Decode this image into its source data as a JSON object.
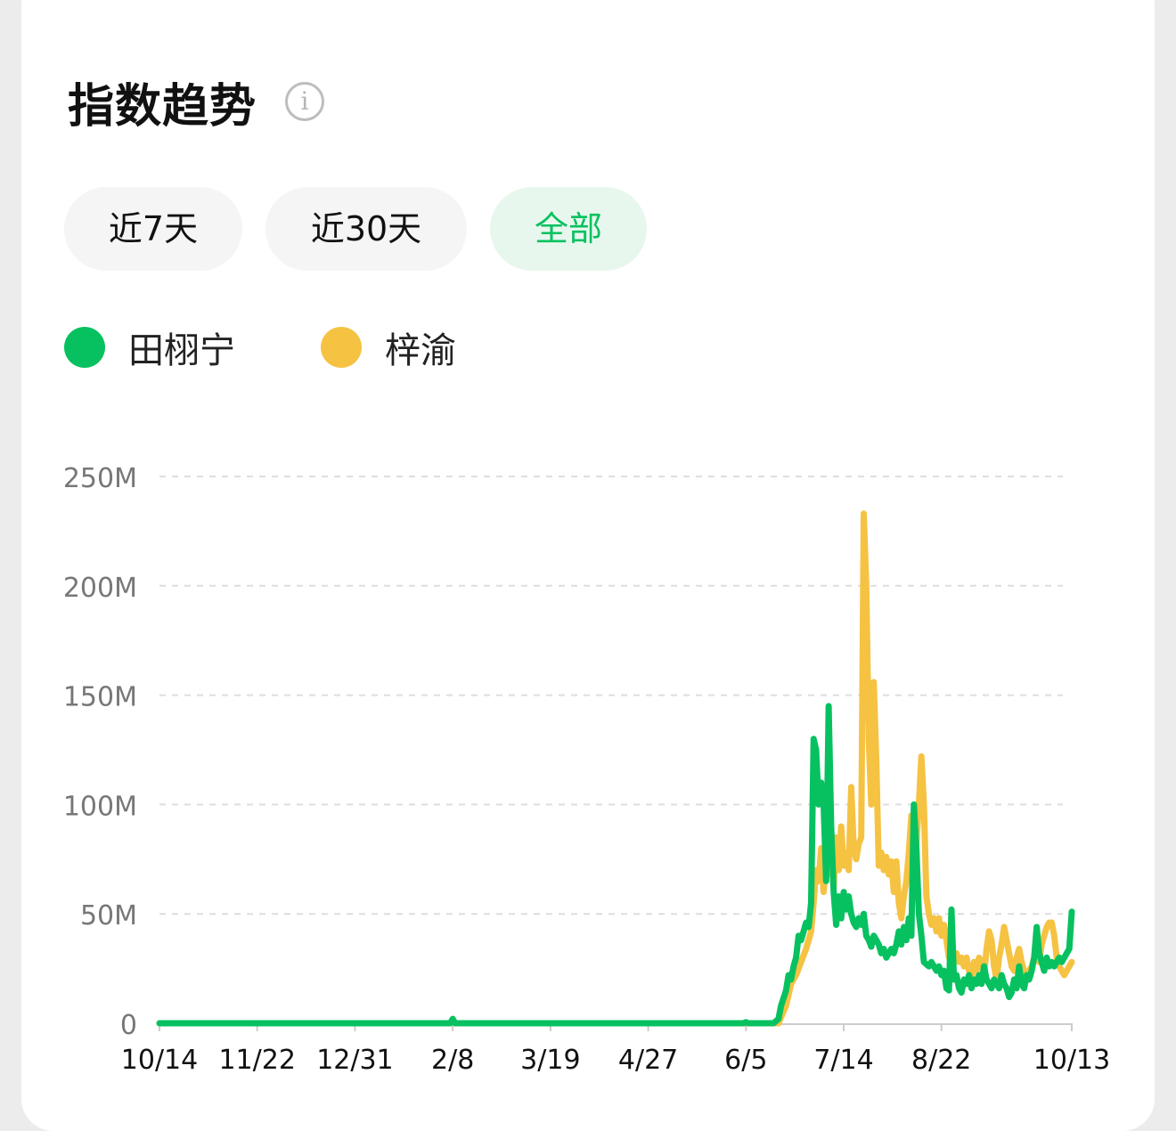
{
  "header": {
    "title": "指数趋势",
    "info_glyph": "i",
    "info_icon": "info-circle-icon"
  },
  "tabs": [
    {
      "label": "近7天",
      "active": false
    },
    {
      "label": "近30天",
      "active": false
    },
    {
      "label": "全部",
      "active": true
    }
  ],
  "colors": {
    "accent": "#07c160",
    "series1": "#07c160",
    "series2": "#f5c242",
    "active_tab_bg": "#e8f7ee",
    "tab_bg": "#f5f5f5"
  },
  "legend": [
    {
      "name": "田栩宁",
      "color": "#07c160"
    },
    {
      "name": "梓渝",
      "color": "#f5c242"
    }
  ],
  "chart_data": {
    "type": "line",
    "y_tick_labels": [
      "0",
      "50M",
      "100M",
      "150M",
      "200M",
      "250M"
    ],
    "y_ticks": [
      0,
      50,
      100,
      150,
      200,
      250
    ],
    "ylim": [
      0,
      250
    ],
    "y_unit": "M",
    "x_tick_labels": [
      "10/14",
      "11/22",
      "12/31",
      "2/8",
      "3/19",
      "4/27",
      "6/5",
      "7/14",
      "8/22",
      "10/13"
    ],
    "x_ticks": [
      "2024-10-14",
      "2024-11-22",
      "2024-12-31",
      "2025-02-08",
      "2025-03-19",
      "2025-04-27",
      "2025-06-05",
      "2025-07-14",
      "2025-08-22",
      "2025-10-13"
    ],
    "xlim": [
      "2024-10-14",
      "2025-10-13"
    ],
    "grid": true,
    "series": [
      {
        "name": "梓渝",
        "color": "#f5c242",
        "points": [
          [
            "2024-10-14",
            0
          ],
          [
            "2025-02-07",
            0
          ],
          [
            "2025-02-08",
            1
          ],
          [
            "2025-02-09",
            0
          ],
          [
            "2025-06-05",
            0
          ],
          [
            "2025-06-18",
            0
          ],
          [
            "2025-06-21",
            8
          ],
          [
            "2025-06-23",
            18
          ],
          [
            "2025-06-25",
            22
          ],
          [
            "2025-06-27",
            28
          ],
          [
            "2025-06-29",
            34
          ],
          [
            "2025-07-01",
            42
          ],
          [
            "2025-07-02",
            55
          ],
          [
            "2025-07-03",
            70
          ],
          [
            "2025-07-04",
            65
          ],
          [
            "2025-07-05",
            80
          ],
          [
            "2025-07-06",
            60
          ],
          [
            "2025-07-07",
            75
          ],
          [
            "2025-07-08",
            68
          ],
          [
            "2025-07-09",
            78
          ],
          [
            "2025-07-10",
            62
          ],
          [
            "2025-07-11",
            85
          ],
          [
            "2025-07-12",
            70
          ],
          [
            "2025-07-13",
            90
          ],
          [
            "2025-07-14",
            72
          ],
          [
            "2025-07-15",
            78
          ],
          [
            "2025-07-16",
            70
          ],
          [
            "2025-07-17",
            108
          ],
          [
            "2025-07-18",
            80
          ],
          [
            "2025-07-19",
            75
          ],
          [
            "2025-07-20",
            82
          ],
          [
            "2025-07-21",
            85
          ],
          [
            "2025-07-22",
            233
          ],
          [
            "2025-07-23",
            200
          ],
          [
            "2025-07-24",
            130
          ],
          [
            "2025-07-25",
            100
          ],
          [
            "2025-07-26",
            156
          ],
          [
            "2025-07-27",
            120
          ],
          [
            "2025-07-28",
            72
          ],
          [
            "2025-07-29",
            78
          ],
          [
            "2025-07-30",
            70
          ],
          [
            "2025-07-31",
            76
          ],
          [
            "2025-08-01",
            68
          ],
          [
            "2025-08-02",
            74
          ],
          [
            "2025-08-03",
            60
          ],
          [
            "2025-08-04",
            74
          ],
          [
            "2025-08-05",
            55
          ],
          [
            "2025-08-06",
            48
          ],
          [
            "2025-08-07",
            58
          ],
          [
            "2025-08-08",
            65
          ],
          [
            "2025-08-09",
            78
          ],
          [
            "2025-08-10",
            95
          ],
          [
            "2025-08-11",
            62
          ],
          [
            "2025-08-12",
            82
          ],
          [
            "2025-08-13",
            100
          ],
          [
            "2025-08-14",
            122
          ],
          [
            "2025-08-15",
            100
          ],
          [
            "2025-08-16",
            58
          ],
          [
            "2025-08-17",
            50
          ],
          [
            "2025-08-18",
            45
          ],
          [
            "2025-08-19",
            48
          ],
          [
            "2025-08-20",
            42
          ],
          [
            "2025-08-21",
            48
          ],
          [
            "2025-08-22",
            40
          ],
          [
            "2025-08-23",
            45
          ],
          [
            "2025-08-24",
            38
          ],
          [
            "2025-08-25",
            30
          ],
          [
            "2025-08-26",
            36
          ],
          [
            "2025-08-27",
            30
          ],
          [
            "2025-08-28",
            32
          ],
          [
            "2025-08-29",
            28
          ],
          [
            "2025-08-30",
            30
          ],
          [
            "2025-08-31",
            26
          ],
          [
            "2025-09-01",
            30
          ],
          [
            "2025-09-02",
            24
          ],
          [
            "2025-09-03",
            20
          ],
          [
            "2025-09-04",
            28
          ],
          [
            "2025-09-05",
            24
          ],
          [
            "2025-09-06",
            30
          ],
          [
            "2025-09-07",
            28
          ],
          [
            "2025-09-08",
            22
          ],
          [
            "2025-09-09",
            34
          ],
          [
            "2025-09-10",
            42
          ],
          [
            "2025-09-11",
            38
          ],
          [
            "2025-09-12",
            26
          ],
          [
            "2025-09-13",
            20
          ],
          [
            "2025-09-14",
            30
          ],
          [
            "2025-09-15",
            36
          ],
          [
            "2025-09-16",
            44
          ],
          [
            "2025-09-17",
            38
          ],
          [
            "2025-09-18",
            32
          ],
          [
            "2025-09-19",
            26
          ],
          [
            "2025-09-20",
            24
          ],
          [
            "2025-09-21",
            30
          ],
          [
            "2025-09-22",
            34
          ],
          [
            "2025-09-23",
            28
          ],
          [
            "2025-09-24",
            24
          ],
          [
            "2025-09-25",
            20
          ],
          [
            "2025-09-26",
            24
          ],
          [
            "2025-09-27",
            26
          ],
          [
            "2025-09-28",
            30
          ],
          [
            "2025-09-29",
            32
          ],
          [
            "2025-09-30",
            28
          ],
          [
            "2025-10-01",
            36
          ],
          [
            "2025-10-02",
            40
          ],
          [
            "2025-10-03",
            44
          ],
          [
            "2025-10-04",
            46
          ],
          [
            "2025-10-05",
            46
          ],
          [
            "2025-10-06",
            40
          ],
          [
            "2025-10-07",
            30
          ],
          [
            "2025-10-08",
            26
          ],
          [
            "2025-10-09",
            24
          ],
          [
            "2025-10-10",
            22
          ],
          [
            "2025-10-11",
            24
          ],
          [
            "2025-10-12",
            26
          ],
          [
            "2025-10-13",
            28
          ]
        ]
      },
      {
        "name": "田栩宁",
        "color": "#07c160",
        "points": [
          [
            "2024-10-14",
            0
          ],
          [
            "2025-02-07",
            0
          ],
          [
            "2025-02-08",
            2
          ],
          [
            "2025-02-09",
            0
          ],
          [
            "2025-06-04",
            0
          ],
          [
            "2025-06-05",
            0.5
          ],
          [
            "2025-06-06",
            0
          ],
          [
            "2025-06-16",
            0
          ],
          [
            "2025-06-18",
            2
          ],
          [
            "2025-06-19",
            8
          ],
          [
            "2025-06-21",
            15
          ],
          [
            "2025-06-22",
            22
          ],
          [
            "2025-06-23",
            20
          ],
          [
            "2025-06-24",
            26
          ],
          [
            "2025-06-25",
            30
          ],
          [
            "2025-06-26",
            40
          ],
          [
            "2025-06-27",
            38
          ],
          [
            "2025-06-28",
            42
          ],
          [
            "2025-06-29",
            46
          ],
          [
            "2025-06-30",
            44
          ],
          [
            "2025-07-01",
            55
          ],
          [
            "2025-07-02",
            130
          ],
          [
            "2025-07-03",
            125
          ],
          [
            "2025-07-04",
            100
          ],
          [
            "2025-07-05",
            110
          ],
          [
            "2025-07-06",
            100
          ],
          [
            "2025-07-07",
            65
          ],
          [
            "2025-07-08",
            145
          ],
          [
            "2025-07-09",
            90
          ],
          [
            "2025-07-10",
            60
          ],
          [
            "2025-07-11",
            45
          ],
          [
            "2025-07-12",
            58
          ],
          [
            "2025-07-13",
            48
          ],
          [
            "2025-07-14",
            60
          ],
          [
            "2025-07-15",
            52
          ],
          [
            "2025-07-16",
            58
          ],
          [
            "2025-07-17",
            50
          ],
          [
            "2025-07-18",
            46
          ],
          [
            "2025-07-19",
            44
          ],
          [
            "2025-07-20",
            48
          ],
          [
            "2025-07-21",
            45
          ],
          [
            "2025-07-22",
            50
          ],
          [
            "2025-07-23",
            40
          ],
          [
            "2025-07-24",
            38
          ],
          [
            "2025-07-25",
            35
          ],
          [
            "2025-07-26",
            40
          ],
          [
            "2025-07-27",
            38
          ],
          [
            "2025-07-28",
            36
          ],
          [
            "2025-07-29",
            32
          ],
          [
            "2025-07-30",
            34
          ],
          [
            "2025-07-31",
            30
          ],
          [
            "2025-08-01",
            32
          ],
          [
            "2025-08-02",
            34
          ],
          [
            "2025-08-03",
            32
          ],
          [
            "2025-08-04",
            36
          ],
          [
            "2025-08-05",
            42
          ],
          [
            "2025-08-06",
            36
          ],
          [
            "2025-08-07",
            44
          ],
          [
            "2025-08-08",
            38
          ],
          [
            "2025-08-09",
            48
          ],
          [
            "2025-08-10",
            40
          ],
          [
            "2025-08-11",
            100
          ],
          [
            "2025-08-12",
            80
          ],
          [
            "2025-08-13",
            50
          ],
          [
            "2025-08-14",
            40
          ],
          [
            "2025-08-15",
            28
          ],
          [
            "2025-08-16",
            27
          ],
          [
            "2025-08-17",
            26
          ],
          [
            "2025-08-18",
            28
          ],
          [
            "2025-08-19",
            26
          ],
          [
            "2025-08-20",
            24
          ],
          [
            "2025-08-21",
            26
          ],
          [
            "2025-08-22",
            22
          ],
          [
            "2025-08-23",
            24
          ],
          [
            "2025-08-24",
            16
          ],
          [
            "2025-08-25",
            15
          ],
          [
            "2025-08-26",
            52
          ],
          [
            "2025-08-27",
            20
          ],
          [
            "2025-08-28",
            22
          ],
          [
            "2025-08-29",
            16
          ],
          [
            "2025-08-30",
            14
          ],
          [
            "2025-08-31",
            20
          ],
          [
            "2025-09-01",
            18
          ],
          [
            "2025-09-02",
            22
          ],
          [
            "2025-09-03",
            16
          ],
          [
            "2025-09-04",
            20
          ],
          [
            "2025-09-05",
            18
          ],
          [
            "2025-09-06",
            22
          ],
          [
            "2025-09-07",
            18
          ],
          [
            "2025-09-08",
            26
          ],
          [
            "2025-09-09",
            20
          ],
          [
            "2025-09-10",
            18
          ],
          [
            "2025-09-11",
            16
          ],
          [
            "2025-09-12",
            20
          ],
          [
            "2025-09-13",
            18
          ],
          [
            "2025-09-14",
            16
          ],
          [
            "2025-09-15",
            22
          ],
          [
            "2025-09-16",
            18
          ],
          [
            "2025-09-17",
            16
          ],
          [
            "2025-09-18",
            12
          ],
          [
            "2025-09-19",
            14
          ],
          [
            "2025-09-20",
            20
          ],
          [
            "2025-09-21",
            16
          ],
          [
            "2025-09-22",
            26
          ],
          [
            "2025-09-23",
            18
          ],
          [
            "2025-09-24",
            16
          ],
          [
            "2025-09-25",
            22
          ],
          [
            "2025-09-26",
            20
          ],
          [
            "2025-09-27",
            24
          ],
          [
            "2025-09-28",
            30
          ],
          [
            "2025-09-29",
            44
          ],
          [
            "2025-09-30",
            32
          ],
          [
            "2025-10-01",
            28
          ],
          [
            "2025-10-02",
            24
          ],
          [
            "2025-10-03",
            30
          ],
          [
            "2025-10-04",
            26
          ],
          [
            "2025-10-05",
            28
          ],
          [
            "2025-10-06",
            26
          ],
          [
            "2025-10-07",
            28
          ],
          [
            "2025-10-08",
            30
          ],
          [
            "2025-10-09",
            28
          ],
          [
            "2025-10-10",
            30
          ],
          [
            "2025-10-11",
            32
          ],
          [
            "2025-10-12",
            34
          ],
          [
            "2025-10-13",
            51
          ]
        ]
      }
    ]
  }
}
